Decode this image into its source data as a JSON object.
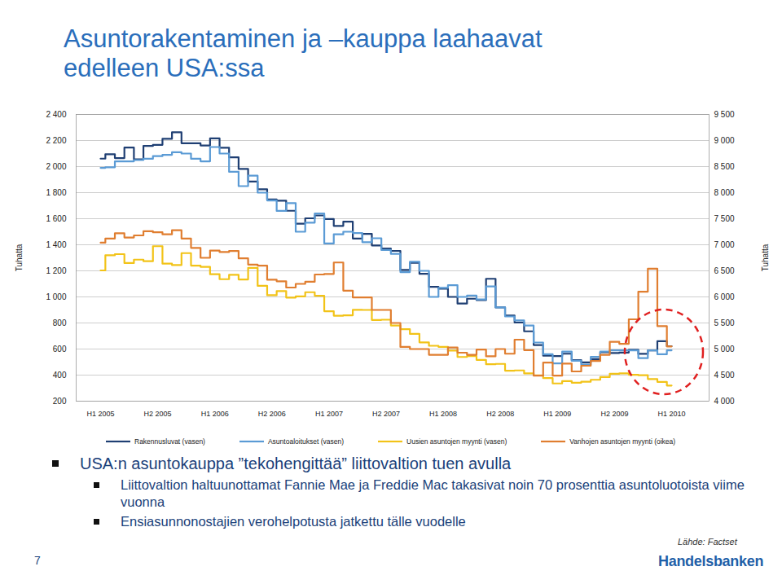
{
  "chart_data": {
    "type": "line",
    "title": "Asuntorakentaminen ja –kauppa laahaavat\nedelleen USA:ssa",
    "ylabel": "Tuhatta",
    "y2label": "Tuhatta",
    "categories": [
      "H1 2005",
      null,
      null,
      null,
      null,
      null,
      "H2 2005",
      null,
      null,
      null,
      null,
      null,
      "H1 2006",
      null,
      null,
      null,
      null,
      null,
      "H2 2006",
      null,
      null,
      null,
      null,
      null,
      "H1 2007",
      null,
      null,
      null,
      null,
      null,
      "H2 2007",
      null,
      null,
      null,
      null,
      null,
      "H1 2008",
      null,
      null,
      null,
      null,
      null,
      "H2 2008",
      null,
      null,
      null,
      null,
      null,
      "H1 2009",
      null,
      null,
      null,
      null,
      null,
      "H2 2009",
      null,
      null,
      null,
      null,
      null,
      "H1 2010"
    ],
    "ylim": [
      200,
      2400
    ],
    "yticks": [
      200,
      400,
      600,
      800,
      {
        "value": 1000,
        "label": "1 000"
      },
      {
        "value": 1200,
        "label": "1 200"
      },
      {
        "value": 1400,
        "label": "1 400"
      },
      {
        "value": 1600,
        "label": "1 600"
      },
      {
        "value": 1800,
        "label": "1 800"
      },
      {
        "value": 2000,
        "label": "2 000"
      },
      {
        "value": 2200,
        "label": "2 200"
      },
      {
        "value": 2400,
        "label": "2 400"
      }
    ],
    "y2lim": [
      4000,
      9500
    ],
    "y2ticks": [
      {
        "value": 4000,
        "label": "4 000"
      },
      {
        "value": 4500,
        "label": "4 500"
      },
      {
        "value": 5000,
        "label": "5 000"
      },
      {
        "value": 5500,
        "label": "5 500"
      },
      {
        "value": 6000,
        "label": "6 000"
      },
      {
        "value": 6500,
        "label": "6 500"
      },
      {
        "value": 7000,
        "label": "7 000"
      },
      {
        "value": 7500,
        "label": "7 500"
      },
      {
        "value": 8000,
        "label": "8 000"
      },
      {
        "value": 8500,
        "label": "8 500"
      },
      {
        "value": 9000,
        "label": "9 000"
      },
      {
        "value": 9500,
        "label": "9 500"
      }
    ],
    "grid": true,
    "legend": "bottom",
    "series": [
      {
        "name": "Rakennusluvat (vasen)",
        "color": "#1f3f73",
        "values": [
          2061,
          2095,
          2065,
          2146,
          2055,
          2158,
          2167,
          2213,
          2263,
          2179,
          2179,
          2162,
          2217,
          2145,
          2071,
          1982,
          1885,
          1826,
          1748,
          1738,
          1661,
          1562,
          1603,
          1625,
          1598,
          1545,
          1577,
          1448,
          1484,
          1395,
          1371,
          1353,
          1207,
          1261,
          1177,
          1077,
          1063,
          1000,
          949,
          986,
          975,
          1139,
          919,
          857,
          803,
          736,
          631,
          549,
          546,
          564,
          515,
          498,
          523,
          575,
          570,
          573,
          595,
          563,
          589,
          660,
          622
        ]
      },
      {
        "name": "Asuntoaloitukset (vasen)",
        "color": "#5b9bd5",
        "values": [
          1990,
          1995,
          2040,
          2040,
          2050,
          2060,
          2080,
          2090,
          2110,
          2100,
          2060,
          2040,
          2150,
          2100,
          1960,
          1850,
          1930,
          1800,
          1740,
          1660,
          1720,
          1500,
          1570,
          1640,
          1410,
          1480,
          1500,
          1490,
          1420,
          1450,
          1360,
          1330,
          1190,
          1270,
          1200,
          1000,
          1070,
          1090,
          1000,
          1010,
          980,
          1080,
          920,
          850,
          820,
          780,
          650,
          560,
          490,
          580,
          510,
          480,
          540,
          580,
          590,
          590,
          590,
          530,
          590,
          560,
          590
        ]
      },
      {
        "name": "Uusien asuntojen myynti (vasen)",
        "color": "#f2c318",
        "values": [
          1203,
          1319,
          1328,
          1260,
          1286,
          1274,
          1389,
          1255,
          1244,
          1336,
          1240,
          1231,
          1174,
          1136,
          1170,
          1134,
          1223,
          1085,
          1013,
          1045,
          995,
          1004,
          1036,
          1009,
          890,
          856,
          859,
          901,
          900,
          823,
          825,
          781,
          752,
          716,
          651,
          625,
          617,
          588,
          539,
          546,
          517,
          483,
          486,
          434,
          436,
          413,
          398,
          377,
          336,
          354,
          342,
          349,
          364,
          385,
          410,
          413,
          402,
          399,
          370,
          348,
          320
        ]
      },
      {
        "name": "Vanhojen asuntojen myynti (oikea)",
        "color": "#e07e30",
        "axis": "y2",
        "values": [
          7040,
          7120,
          7220,
          7140,
          7180,
          7260,
          7240,
          7200,
          7280,
          7120,
          6940,
          6750,
          6890,
          6860,
          6880,
          6740,
          6620,
          6600,
          6330,
          6300,
          6180,
          6250,
          6290,
          6430,
          6440,
          6660,
          6120,
          5990,
          5990,
          5750,
          5750,
          5500,
          5040,
          5000,
          5000,
          4890,
          4890,
          5030,
          4930,
          4890,
          4990,
          4860,
          5000,
          4910,
          5180,
          4980,
          4490,
          4740,
          4490,
          4720,
          4570,
          4680,
          4770,
          4890,
          5140,
          5100,
          5570,
          6100,
          6540,
          5440,
          5050
        ]
      }
    ]
  },
  "bullets": [
    {
      "text": "USA:n asuntokauppa ”tekohengittää” liittovaltion tuen avulla",
      "sub": [
        "Liittovaltion haltuunottamat Fannie Mae ja Freddie Mac takasivat noin 70 prosenttia asuntoluotoista viime vuonna",
        "Ensiasunnonostajien verohelpotusta jatkettu tälle vuodelle"
      ]
    }
  ],
  "source": "Lähde: Factset",
  "page_number": "7",
  "logo": "Handelsbanken"
}
